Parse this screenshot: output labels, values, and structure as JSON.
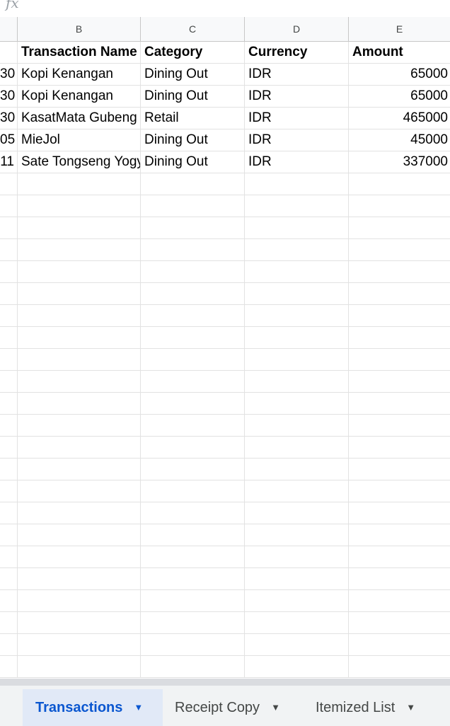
{
  "formula_bar": {
    "fx_label": "fx"
  },
  "columns": [
    "B",
    "C",
    "D",
    "E"
  ],
  "header": {
    "transaction_name": "Transaction Name",
    "category": "Category",
    "currency": "Currency",
    "amount": "Amount"
  },
  "rows": [
    {
      "a": "30",
      "name": "Kopi Kenangan",
      "category": "Dining Out",
      "currency": "IDR",
      "amount": "65000"
    },
    {
      "a": "30",
      "name": "Kopi Kenangan",
      "category": "Dining Out",
      "currency": "IDR",
      "amount": "65000"
    },
    {
      "a": "30",
      "name": "KasatMata Gubeng",
      "category": "Retail",
      "currency": "IDR",
      "amount": "465000"
    },
    {
      "a": "05",
      "name": "MieJol",
      "category": "Dining Out",
      "currency": "IDR",
      "amount": "45000"
    },
    {
      "a": "11",
      "name": "Sate Tongseng Yogya",
      "category": "Dining Out",
      "currency": "IDR",
      "amount": "337000"
    }
  ],
  "sheet_tabs": [
    {
      "label": "Transactions",
      "active": true
    },
    {
      "label": "Receipt Copy",
      "active": false
    },
    {
      "label": "Itemized List",
      "active": false
    }
  ],
  "colors": {
    "active_tab_bg": "#e1e9f7",
    "active_tab_text": "#0b57d0"
  }
}
